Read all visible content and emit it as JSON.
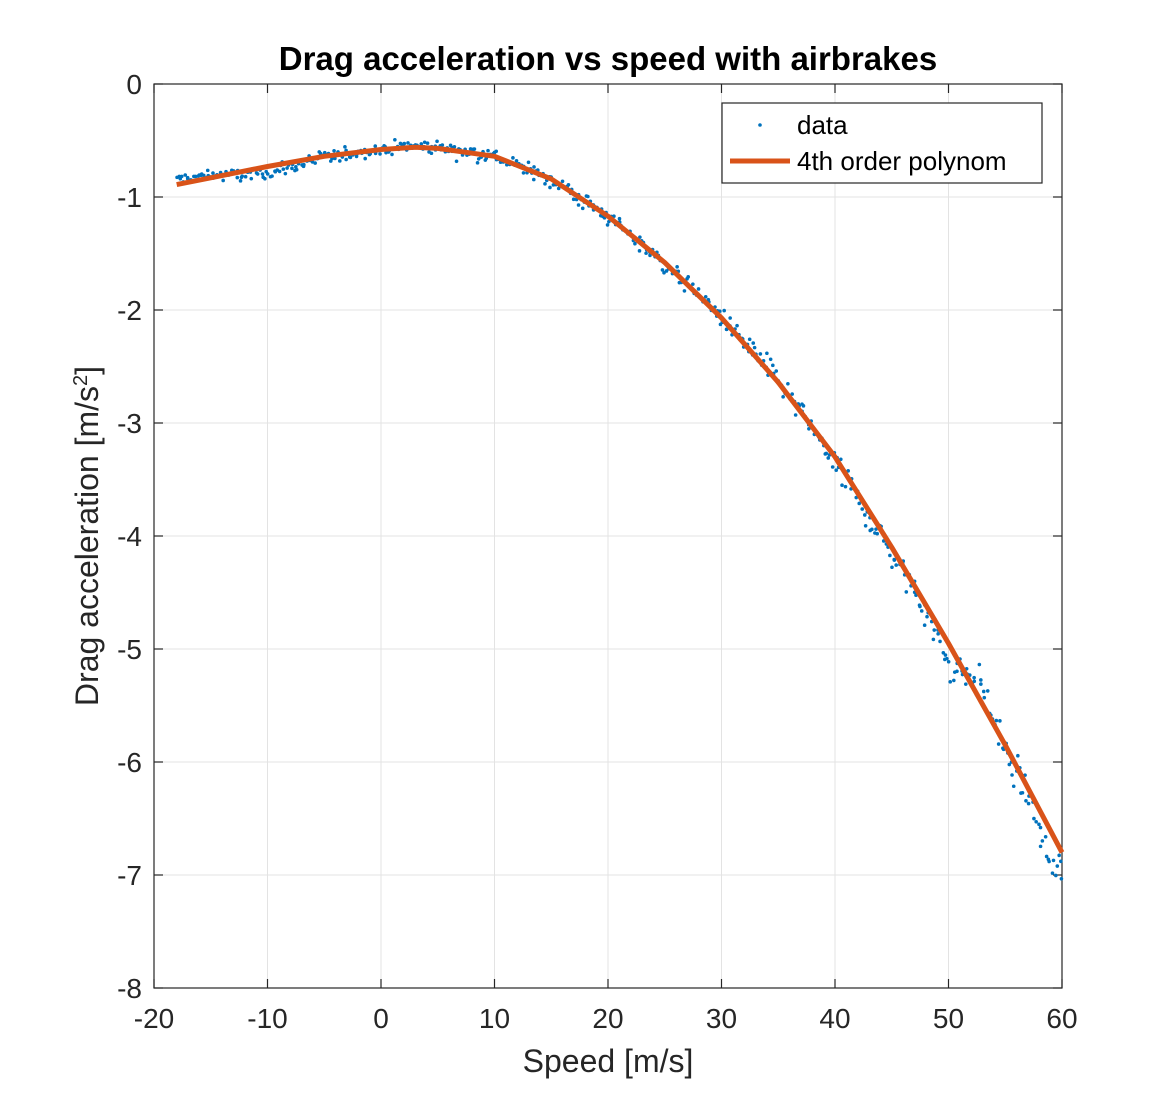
{
  "chart_data": {
    "type": "scatter",
    "title": "Drag acceleration vs speed with airbrakes",
    "xlabel": "Speed [m/s]",
    "ylabel_main": "Drag acceleration [m/s",
    "ylabel_sup": "2",
    "ylabel_close": "]",
    "xlim": [
      -20,
      60
    ],
    "ylim": [
      -8,
      0
    ],
    "xticks": [
      -20,
      -10,
      0,
      10,
      20,
      30,
      40,
      50,
      60
    ],
    "yticks": [
      0,
      -1,
      -2,
      -3,
      -4,
      -5,
      -6,
      -7,
      -8
    ],
    "grid": true,
    "legend_position": "top-right",
    "series": [
      {
        "name": "data",
        "kind": "markers",
        "color": "#0072bd",
        "x_range": [
          -18,
          60
        ],
        "n_points": 520,
        "noise_sd_low_speed": 0.04,
        "noise_sd_high_speed": 0.12,
        "sample_points": [
          {
            "x": -18,
            "y": -0.8
          },
          {
            "x": -15,
            "y": -0.78
          },
          {
            "x": -12,
            "y": -0.85
          },
          {
            "x": -10,
            "y": -0.84
          },
          {
            "x": -8,
            "y": -0.79
          },
          {
            "x": -5,
            "y": -0.66
          },
          {
            "x": 0,
            "y": -0.57
          },
          {
            "x": 3,
            "y": -0.53
          },
          {
            "x": 7,
            "y": -0.57
          },
          {
            "x": 10,
            "y": -0.64
          },
          {
            "x": 15,
            "y": -0.85
          },
          {
            "x": 20,
            "y": -1.18
          },
          {
            "x": 25,
            "y": -1.6
          },
          {
            "x": 28,
            "y": -1.85
          },
          {
            "x": 30,
            "y": -2.05
          },
          {
            "x": 35,
            "y": -2.6
          },
          {
            "x": 40,
            "y": -3.4
          },
          {
            "x": 45,
            "y": -4.2
          },
          {
            "x": 48,
            "y": -4.7
          },
          {
            "x": 50,
            "y": -5.3
          },
          {
            "x": 53,
            "y": -5.15
          },
          {
            "x": 55,
            "y": -6.0
          },
          {
            "x": 57,
            "y": -6.35
          },
          {
            "x": 59,
            "y": -7.25
          },
          {
            "x": 60,
            "y": -7.08
          }
        ]
      },
      {
        "name": "4th order polynom",
        "kind": "line",
        "color": "#d95319",
        "points": [
          {
            "x": -18,
            "y": -0.89
          },
          {
            "x": -15,
            "y": -0.83
          },
          {
            "x": -10,
            "y": -0.73
          },
          {
            "x": -5,
            "y": -0.64
          },
          {
            "x": 0,
            "y": -0.58
          },
          {
            "x": 3,
            "y": -0.56
          },
          {
            "x": 5,
            "y": -0.57
          },
          {
            "x": 10,
            "y": -0.64
          },
          {
            "x": 15,
            "y": -0.84
          },
          {
            "x": 20,
            "y": -1.17
          },
          {
            "x": 25,
            "y": -1.58
          },
          {
            "x": 30,
            "y": -2.07
          },
          {
            "x": 35,
            "y": -2.64
          },
          {
            "x": 40,
            "y": -3.3
          },
          {
            "x": 45,
            "y": -4.1
          },
          {
            "x": 50,
            "y": -4.95
          },
          {
            "x": 55,
            "y": -5.85
          },
          {
            "x": 60,
            "y": -6.8
          }
        ]
      }
    ]
  }
}
